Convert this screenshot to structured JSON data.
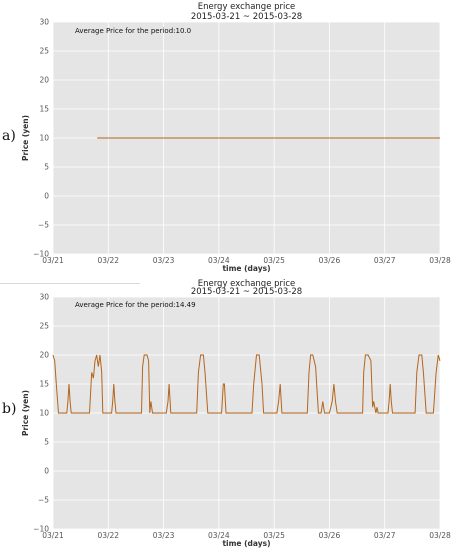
{
  "panel_labels": [
    "a)",
    "b)"
  ],
  "chart_data": [
    {
      "type": "line",
      "title": "Energy exchange price",
      "subtitle": "2015-03-21 ~ 2015-03-28",
      "xlabel": "time (days)",
      "ylabel": "Price (yen)",
      "x_ticks": [
        "03/21",
        "03/22",
        "03/23",
        "03/24",
        "03/25",
        "03/26",
        "03/27",
        "03/28"
      ],
      "y_ticks": [
        -10,
        -5,
        0,
        5,
        10,
        15,
        20,
        25,
        30
      ],
      "xlim": [
        0,
        7
      ],
      "ylim": [
        -10,
        30
      ],
      "grid": true,
      "annotation": "Average Price for the period:10.0",
      "series": [
        {
          "color": "#b5651d",
          "x": [
            0.8,
            7.0
          ],
          "y": [
            10,
            10
          ]
        }
      ]
    },
    {
      "type": "line",
      "title": "Energy exchange price",
      "subtitle": "2015-03-21 ~ 2015-03-28",
      "xlabel": "time (days)",
      "ylabel": "Price (yen)",
      "x_ticks": [
        "03/21",
        "03/22",
        "03/23",
        "03/24",
        "03/25",
        "03/26",
        "03/27",
        "03/28"
      ],
      "y_ticks": [
        -10,
        -5,
        0,
        5,
        10,
        15,
        20,
        25,
        30
      ],
      "xlim": [
        0,
        7
      ],
      "ylim": [
        -10,
        30
      ],
      "grid": true,
      "annotation": "Average Price for the period:14.49",
      "series": [
        {
          "color": "#b5651d",
          "x": [
            0.0,
            0.03,
            0.06,
            0.1,
            0.15,
            0.25,
            0.27,
            0.29,
            0.31,
            0.33,
            0.4,
            0.66,
            0.7,
            0.73,
            0.76,
            0.79,
            0.82,
            0.85,
            0.88,
            0.9,
            1.0,
            1.06,
            1.08,
            1.1,
            1.12,
            1.14,
            1.6,
            1.62,
            1.65,
            1.7,
            1.73,
            1.75,
            1.77,
            1.8,
            1.85,
            1.88,
            2.0,
            2.05,
            2.08,
            2.1,
            2.13,
            2.6,
            2.63,
            2.67,
            2.72,
            2.75,
            2.8,
            2.85,
            2.87,
            3.0,
            3.05,
            3.08,
            3.1,
            3.13,
            3.6,
            3.63,
            3.68,
            3.73,
            3.78,
            3.81,
            4.0,
            4.05,
            4.08,
            4.11,
            4.14,
            4.6,
            4.63,
            4.66,
            4.7,
            4.75,
            4.8,
            4.85,
            4.88,
            4.91,
            5.0,
            5.05,
            5.08,
            5.11,
            5.14,
            5.6,
            5.62,
            5.65,
            5.7,
            5.75,
            5.78,
            5.8,
            5.84,
            5.86,
            5.88,
            5.9,
            6.0,
            6.06,
            6.08,
            6.1,
            6.12,
            6.14,
            6.55,
            6.58,
            6.62,
            6.67,
            6.7,
            6.75,
            6.8,
            6.88,
            6.93,
            6.97,
            7.0
          ],
          "y": [
            20,
            19,
            15,
            10,
            10,
            10,
            12,
            15,
            12,
            10,
            10,
            10,
            17,
            16,
            19,
            20,
            18,
            20,
            17,
            10,
            10,
            10,
            12,
            15,
            12,
            10,
            10,
            18,
            20,
            20,
            19,
            10,
            12,
            10,
            10,
            10,
            10,
            10,
            12,
            15,
            10,
            10,
            17,
            20,
            20,
            17,
            10,
            10,
            10,
            10,
            10,
            15,
            15,
            10,
            10,
            15,
            20,
            20,
            15,
            10,
            10,
            10,
            12,
            15,
            10,
            10,
            17,
            20,
            20,
            18,
            10,
            10,
            12,
            10,
            10,
            12,
            15,
            12,
            10,
            10,
            17,
            20,
            20,
            19,
            11,
            12,
            10,
            11,
            10,
            10,
            10,
            10,
            12,
            15,
            12,
            10,
            10,
            17,
            20,
            20,
            17,
            10,
            10,
            10,
            17,
            20,
            19
          ]
        }
      ]
    }
  ]
}
